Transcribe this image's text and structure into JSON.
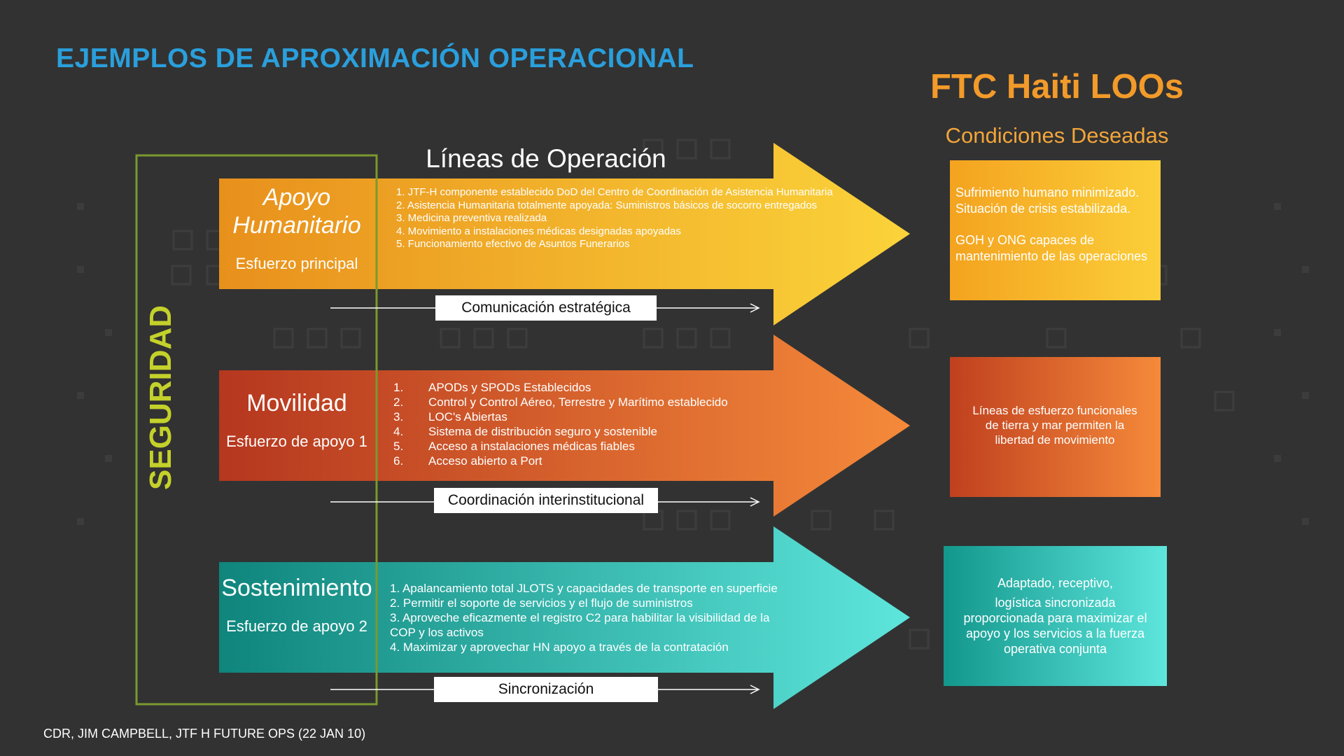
{
  "header": {
    "title": "EJEMPLOS DE APROXIMACIÓN OPERACIONAL",
    "right_title": "FTC Haiti LOOs",
    "right_subtitle": "Condiciones Deseadas",
    "center_title": "Líneas de Operación"
  },
  "security_label": "SEGURIDAD",
  "lines": [
    {
      "name": "Apoyo Humanitario",
      "name_line1": "Apoyo",
      "name_line2": "Humanitario",
      "effort": "Esfuerzo principal",
      "items": [
        "1.  JTF-H componente establecido DoD del Centro de Coordinación de Asistencia Humanitaria",
        "2.  Asistencia Humanitaria totalmente apoyada: Suministros básicos de socorro entregados",
        "3.  Medicina preventiva realizada",
        "4.  Movimiento a instalaciones médicas designadas apoyadas",
        "5.  Funcionamiento efectivo de Asuntos Funerarios"
      ],
      "connector": "Comunicación estratégica",
      "condition_p1": "Sufrimiento humano minimizado. Situación de crisis estabilizada.",
      "condition_p2": "GOH y ONG capaces de mantenimiento de las  operaciones",
      "color_start": "#e8901c",
      "color_end": "#fbd33a"
    },
    {
      "name": "Movilidad",
      "effort": "Esfuerzo de apoyo 1",
      "items": [
        {
          "n": "1.",
          "t": "APODs y SPODs Establecidos"
        },
        {
          "n": "2.",
          "t": "Control y Control Aéreo, Terrestre y Marítimo establecido"
        },
        {
          "n": "3.",
          "t": "LOC's Abiertas"
        },
        {
          "n": "4.",
          "t": "Sistema de distribución seguro y sostenible"
        },
        {
          "n": "5.",
          "t": "Acceso a instalaciones médicas fiables"
        },
        {
          "n": "6.",
          "t": "Acceso abierto a Port"
        }
      ],
      "connector": "Coordinación interinstitucional",
      "condition": "Líneas de esfuerzo funcionales de tierra y mar permiten la libertad de movimiento",
      "color_start": "#b5371f",
      "color_end": "#f58a3a"
    },
    {
      "name": "Sostenimiento",
      "effort": "Esfuerzo de apoyo 2",
      "items": [
        "1. Apalancamiento total JLOTS y capacidades de transporte en superficie",
        "2. Permitir el soporte de servicios y el flujo de suministros",
        "3. Aproveche eficazmente el registro C2 para habilitar la visibilidad de la COP y los activos",
        "4. Maximizar y aprovechar HN apoyo a través de la contratación"
      ],
      "connector": "Sincronización",
      "condition_p1": "Adaptado, receptivo,",
      "condition_p2": "logística sincronizada proporcionada para maximizar el apoyo y los servicios a la fuerza operativa conjunta",
      "color_start": "#0f857c",
      "color_end": "#5ee6dc"
    }
  ],
  "colors": {
    "background": "#323232",
    "title_blue": "#2a9fdc",
    "orange_text": "#f29a2a",
    "security_green": "#c4d12a",
    "frame_green": "#7a9a2e"
  },
  "footer": "CDR, JIM CAMPBELL, JTF  H FUTURE OPS  (22 JAN 10)"
}
